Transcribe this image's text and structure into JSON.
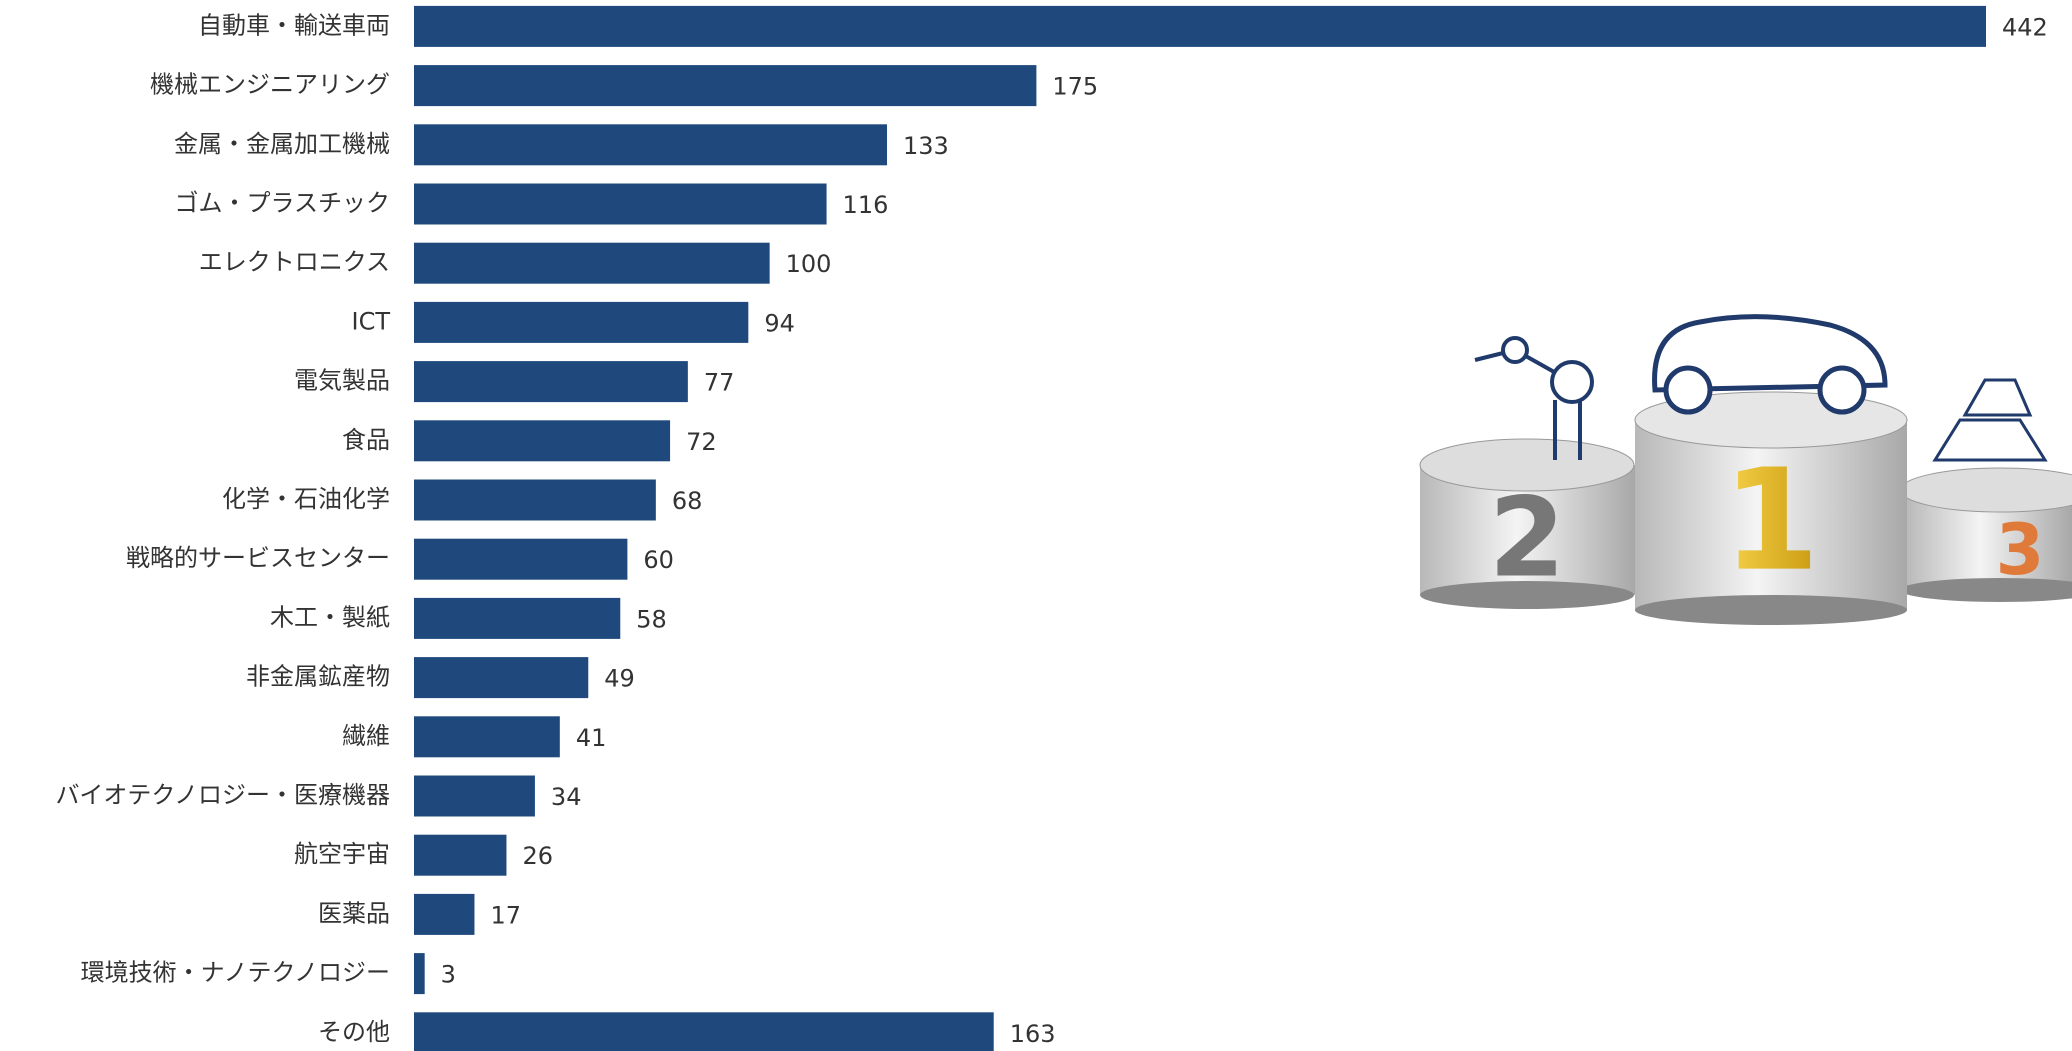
{
  "chart_data": {
    "type": "barh",
    "categories": [
      "自動車・輸送車両",
      "機械エンジニアリング",
      "金属・金属加工機械",
      "ゴム・プラスチック",
      "エレクトロニクス",
      "ICT",
      "電気製品",
      "食品",
      "化学・石油化学",
      "戦略的サービスセンター",
      "木工・製紙",
      "非金属鉱産物",
      "繊維",
      "バイオテクノロジー・医療機器",
      "航空宇宙",
      "医薬品",
      "環境技術・ナノテクノロジー",
      "その他"
    ],
    "values": [
      442,
      175,
      133,
      116,
      100,
      94,
      77,
      72,
      68,
      60,
      58,
      49,
      41,
      34,
      26,
      17,
      3,
      163
    ],
    "color": "#1f497d"
  },
  "illustration": {
    "ranks": [
      "2",
      "1",
      "3"
    ]
  }
}
